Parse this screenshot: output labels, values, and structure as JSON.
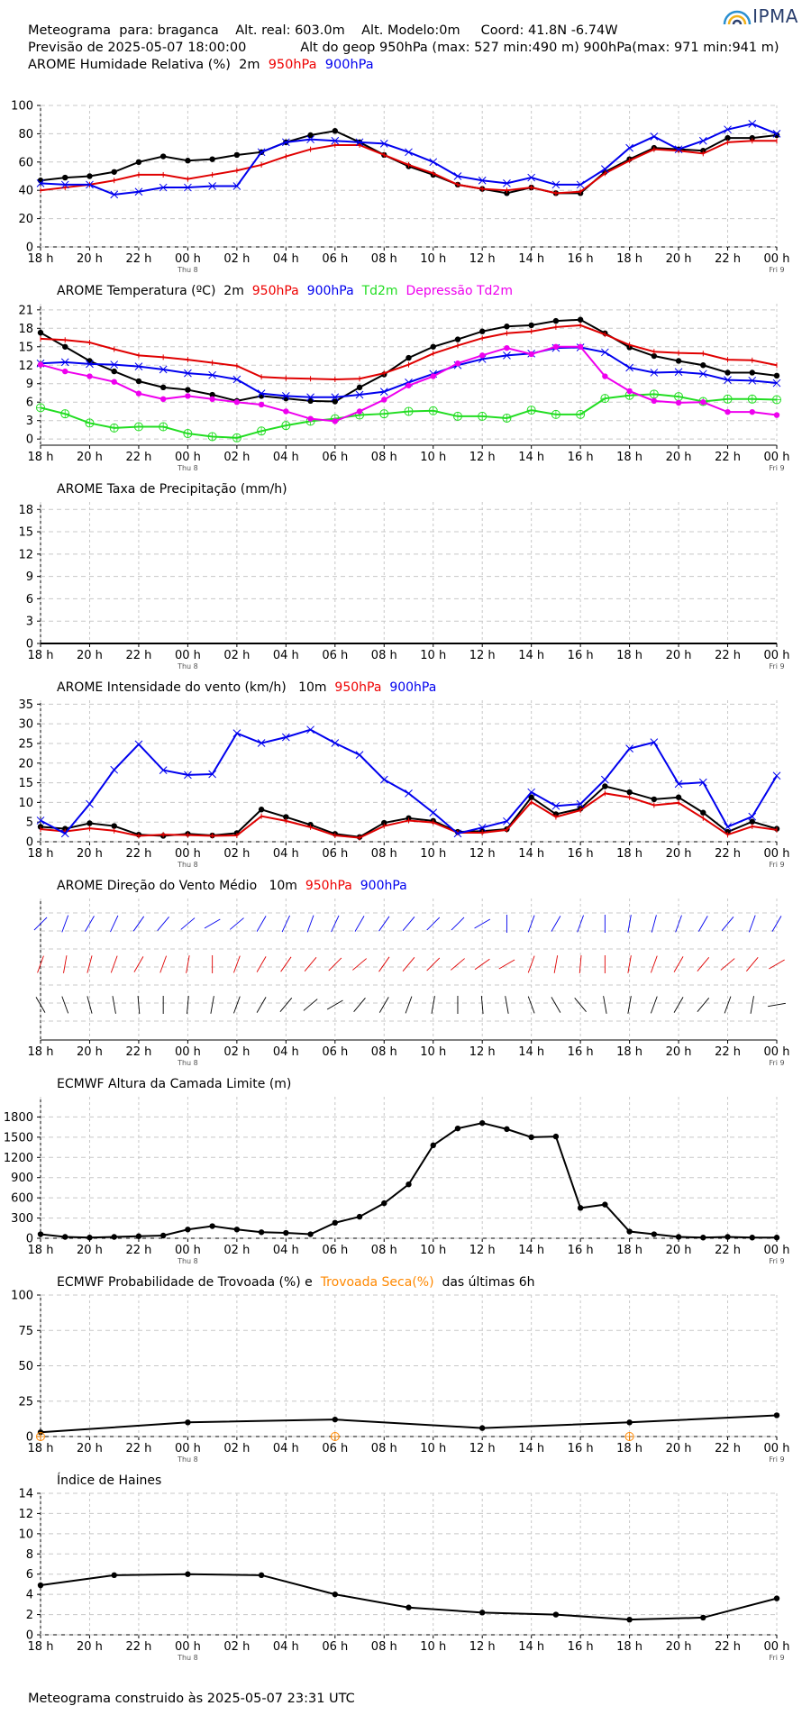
{
  "header": {
    "line1": "Meteograma  para: braganca    Alt. real: 603.0m    Alt. Modelo:0m     Coord: 41.8N -6.74W",
    "line2": "Previsão de 2025-05-07 18:00:00             Alt do geop 950hPa (max: 527 min:490 m) 900hPa(max: 971 min:941 m)",
    "line3_prefix": "AROME Humidade Relativa (%)  2m  ",
    "line3_950": "950hPa",
    "line3_900": "900hPa",
    "logo": "IPMA"
  },
  "titles": {
    "temp_prefix": "AROME Temperatura (ºC)  2m  ",
    "temp_950": "950hPa",
    "temp_900": "900hPa",
    "temp_td": "Td2m",
    "temp_dep": "Depressão Td2m",
    "precip": "AROME Taxa de Precipitação (mm/h)",
    "wind_prefix": "AROME Intensidade do vento (km/h)   10m  ",
    "wind_950": "950hPa",
    "wind_900": "900hPa",
    "dir_prefix": "AROME Direção do Vento Médio   10m  ",
    "dir_950": "950hPa",
    "dir_900": "900hPa",
    "pbl": "ECMWF Altura da Camada Limite (m)",
    "storm_prefix": "ECMWF Probabilidade de Trovoada (%) e  ",
    "storm_dry": "Trovoada Seca(%)",
    "storm_suffix": "  das últimas 6h",
    "haines": "Índice de Haines"
  },
  "footer": "Meteograma construido às 2025-05-07 23:31 UTC",
  "colors": {
    "c2m": "#000000",
    "c950": "#e00000",
    "c900": "#0000ee",
    "ctd": "#22dd22",
    "cdep": "#ee00ee",
    "cdry": "#ff8800",
    "grid": "#c8c8c8"
  },
  "chart_data": [
    {
      "id": "rh",
      "type": "line",
      "x_tick_labels": [
        "18 h",
        "20 h",
        "22 h",
        "00 h",
        "02 h",
        "04 h",
        "06 h",
        "08 h",
        "10 h",
        "12 h",
        "14 h",
        "16 h",
        "18 h",
        "20 h",
        "22 h",
        "00 h"
      ],
      "x_sub_labels": {
        "3": "Thu 8",
        "15": "Fri 9"
      },
      "ylim": [
        0,
        100
      ],
      "yticks": [
        "0",
        "20",
        "40",
        "60",
        "80",
        "100"
      ],
      "series": [
        {
          "name": "2m",
          "color": "c2m",
          "marker": "dot",
          "values": [
            47,
            49,
            50,
            53,
            60,
            64,
            61,
            62,
            65,
            67,
            74,
            79,
            82,
            74,
            65,
            57,
            51,
            44,
            41,
            38,
            42,
            38,
            38,
            53,
            62,
            70,
            69,
            68,
            77,
            77,
            79
          ]
        },
        {
          "name": "950hPa",
          "color": "c950",
          "marker": "tick",
          "values": [
            40,
            42,
            44,
            47,
            51,
            51,
            48,
            51,
            54,
            58,
            64,
            69,
            72,
            72,
            65,
            58,
            52,
            44,
            41,
            40,
            42,
            38,
            39,
            52,
            61,
            69,
            68,
            66,
            74,
            75,
            75
          ]
        },
        {
          "name": "900hPa",
          "color": "c900",
          "marker": "x",
          "values": [
            45,
            44,
            44,
            37,
            39,
            42,
            42,
            43,
            43,
            67,
            74,
            76,
            75,
            74,
            73,
            67,
            60,
            50,
            47,
            45,
            49,
            44,
            44,
            55,
            70,
            78,
            69,
            75,
            83,
            87,
            80
          ]
        }
      ]
    },
    {
      "id": "temp",
      "type": "line",
      "x_tick_labels": [
        "18 h",
        "20 h",
        "22 h",
        "00 h",
        "02 h",
        "04 h",
        "06 h",
        "08 h",
        "10 h",
        "12 h",
        "14 h",
        "16 h",
        "18 h",
        "20 h",
        "22 h",
        "00 h"
      ],
      "x_sub_labels": {
        "3": "Thu 8",
        "15": "Fri 9"
      },
      "ylim": [
        -1,
        22
      ],
      "yticks": [
        "0",
        "3",
        "6",
        "9",
        "12",
        "15",
        "18",
        "21"
      ],
      "series": [
        {
          "name": "2m",
          "color": "c2m",
          "marker": "dot",
          "values": [
            17.3,
            15,
            12.7,
            11,
            9.4,
            8.4,
            8,
            7.2,
            6.2,
            7,
            6.6,
            6.2,
            6.1,
            8.4,
            10.5,
            13.2,
            15,
            16.2,
            17.5,
            18.3,
            18.5,
            19.2,
            19.4,
            17.2,
            14.9,
            13.5,
            12.7,
            12,
            10.8,
            10.8,
            10.3
          ]
        },
        {
          "name": "950hPa",
          "color": "c950",
          "marker": "tick",
          "values": [
            16.3,
            16.1,
            15.7,
            14.6,
            13.6,
            13.3,
            12.9,
            12.4,
            11.9,
            10.1,
            9.9,
            9.8,
            9.7,
            9.8,
            10.7,
            12.1,
            13.9,
            15.2,
            16.4,
            17.2,
            17.5,
            18.2,
            18.5,
            17,
            15.3,
            14.2,
            14,
            13.9,
            12.9,
            12.8,
            12
          ]
        },
        {
          "name": "900hPa",
          "color": "c900",
          "marker": "x",
          "values": [
            12.3,
            12.5,
            12.2,
            12.1,
            11.8,
            11.3,
            10.7,
            10.4,
            9.7,
            7.4,
            7,
            6.8,
            6.8,
            7.2,
            7.7,
            9.2,
            10.6,
            12,
            13,
            13.6,
            13.9,
            14.8,
            14.9,
            14.1,
            11.6,
            10.8,
            10.9,
            10.6,
            9.6,
            9.5,
            9.1
          ]
        },
        {
          "name": "Td2m",
          "color": "ctd",
          "marker": "circle",
          "values": [
            5.1,
            4.1,
            2.6,
            1.8,
            2,
            2,
            0.9,
            0.4,
            0.2,
            1.3,
            2.2,
            2.9,
            3.3,
            3.9,
            4.1,
            4.5,
            4.6,
            3.7,
            3.7,
            3.4,
            4.7,
            4,
            4,
            6.6,
            7.1,
            7.3,
            6.9,
            6.1,
            6.5,
            6.5,
            6.4
          ]
        },
        {
          "name": "Depressão Td2m",
          "color": "cdep",
          "marker": "dot",
          "values": [
            12.1,
            11,
            10.2,
            9.3,
            7.4,
            6.5,
            7,
            6.5,
            6,
            5.6,
            4.5,
            3.3,
            2.9,
            4.5,
            6.4,
            8.7,
            10.2,
            12.3,
            13.6,
            14.8,
            13.8,
            15,
            15,
            10.2,
            7.8,
            6.2,
            5.9,
            6,
            4.4,
            4.4,
            3.9
          ]
        }
      ]
    },
    {
      "id": "precip",
      "type": "line",
      "x_tick_labels": [
        "18 h",
        "20 h",
        "22 h",
        "00 h",
        "02 h",
        "04 h",
        "06 h",
        "08 h",
        "10 h",
        "12 h",
        "14 h",
        "16 h",
        "18 h",
        "20 h",
        "22 h",
        "00 h"
      ],
      "x_sub_labels": {
        "3": "Thu 8",
        "15": "Fri 9"
      },
      "ylim": [
        0,
        19
      ],
      "yticks": [
        "0",
        "3",
        "6",
        "9",
        "12",
        "15",
        "18"
      ],
      "series": [
        {
          "name": "precip",
          "color": "c2m",
          "marker": "none",
          "values": [
            0,
            0,
            0,
            0,
            0,
            0,
            0,
            0,
            0,
            0,
            0,
            0,
            0,
            0,
            0,
            0,
            0,
            0,
            0,
            0,
            0,
            0,
            0,
            0,
            0,
            0,
            0,
            0,
            0,
            0,
            0
          ]
        }
      ]
    },
    {
      "id": "wind",
      "type": "line",
      "x_tick_labels": [
        "18 h",
        "20 h",
        "22 h",
        "00 h",
        "02 h",
        "04 h",
        "06 h",
        "08 h",
        "10 h",
        "12 h",
        "14 h",
        "16 h",
        "18 h",
        "20 h",
        "22 h",
        "00 h"
      ],
      "x_sub_labels": {
        "3": "Thu 8",
        "15": "Fri 9"
      },
      "ylim": [
        0,
        36
      ],
      "yticks": [
        "0",
        "5",
        "10",
        "15",
        "20",
        "25",
        "30",
        "35"
      ],
      "series": [
        {
          "name": "2m",
          "color": "c2m",
          "marker": "dot",
          "values": [
            3.8,
            3.3,
            4.7,
            4,
            1.8,
            1.5,
            2,
            1.6,
            2.2,
            8.2,
            6.3,
            4.3,
            2,
            1.2,
            4.8,
            6,
            5.3,
            2.5,
            2.7,
            3.2,
            11.3,
            7,
            8.4,
            14.1,
            12.6,
            10.8,
            11.3,
            7.4,
            2.5,
            5.1,
            3.3
          ]
        },
        {
          "name": "950hPa",
          "color": "c950",
          "marker": "tick",
          "values": [
            3.2,
            2.6,
            3.4,
            2.8,
            1.5,
            1.8,
            1.7,
            1.5,
            1.6,
            6.5,
            5.3,
            3.7,
            1.6,
            1,
            4,
            5.4,
            4.9,
            2.3,
            2.3,
            3,
            10.1,
            6.3,
            8,
            12.3,
            11.3,
            9.3,
            9.9,
            6,
            1.8,
            3.9,
            3
          ]
        },
        {
          "name": "900hPa",
          "color": "c900",
          "marker": "x",
          "values": [
            5.4,
            2.1,
            9.6,
            18.3,
            24.8,
            18.2,
            17,
            17.2,
            27.6,
            25.1,
            26.6,
            28.5,
            25.1,
            22.1,
            15.8,
            12.3,
            7.4,
            2.1,
            3.6,
            5.2,
            12.6,
            9.1,
            9.6,
            15.8,
            23.7,
            25.3,
            14.7,
            15.1,
            3.8,
            6.4,
            16.8
          ]
        }
      ]
    },
    {
      "id": "pbl",
      "type": "line",
      "x_tick_labels": [
        "18 h",
        "20 h",
        "22 h",
        "00 h",
        "02 h",
        "04 h",
        "06 h",
        "08 h",
        "10 h",
        "12 h",
        "14 h",
        "16 h",
        "18 h",
        "20 h",
        "22 h",
        "00 h"
      ],
      "x_sub_labels": {
        "3": "Thu 8",
        "15": "Fri 9"
      },
      "ylim": [
        0,
        2100
      ],
      "yticks": [
        "0",
        "300",
        "600",
        "900",
        "1200",
        "1500",
        "1800"
      ],
      "series": [
        {
          "name": "pbl",
          "color": "c2m",
          "marker": "dot",
          "values": [
            60,
            20,
            10,
            20,
            30,
            40,
            130,
            180,
            130,
            90,
            80,
            60,
            230,
            320,
            520,
            800,
            1380,
            1630,
            1710,
            1620,
            1500,
            1510,
            450,
            500,
            100,
            60,
            20,
            10,
            20,
            10,
            10
          ]
        }
      ]
    },
    {
      "id": "storm",
      "type": "line",
      "x_tick_labels": [
        "18 h",
        "20 h",
        "22 h",
        "00 h",
        "02 h",
        "04 h",
        "06 h",
        "08 h",
        "10 h",
        "12 h",
        "14 h",
        "16 h",
        "18 h",
        "20 h",
        "22 h",
        "00 h"
      ],
      "x_sub_labels": {
        "3": "Thu 8",
        "15": "Fri 9"
      },
      "ylim": [
        0,
        100
      ],
      "yticks": [
        "0",
        "25",
        "50",
        "75",
        "100"
      ],
      "series": [
        {
          "name": "Trovoada",
          "color": "c2m",
          "marker": "dot",
          "x": [
            0,
            6,
            12,
            18,
            24,
            30
          ],
          "values": [
            3,
            10,
            12,
            6,
            10,
            15
          ]
        },
        {
          "name": "Trovoada Seca(%)",
          "color": "cdry",
          "marker": "circle",
          "x": [
            0,
            12,
            24
          ],
          "values": [
            0,
            0,
            0
          ]
        }
      ]
    },
    {
      "id": "haines",
      "type": "line",
      "x_tick_labels": [
        "18 h",
        "20 h",
        "22 h",
        "00 h",
        "02 h",
        "04 h",
        "06 h",
        "08 h",
        "10 h",
        "12 h",
        "14 h",
        "16 h",
        "18 h",
        "20 h",
        "22 h",
        "00 h"
      ],
      "x_sub_labels": {
        "3": "Thu 8",
        "15": "Fri 9"
      },
      "ylim": [
        0,
        14
      ],
      "yticks": [
        "0",
        "2",
        "4",
        "6",
        "8",
        "10",
        "12",
        "14"
      ],
      "series": [
        {
          "name": "haines",
          "color": "c2m",
          "marker": "dot",
          "x": [
            0,
            3,
            6,
            9,
            12,
            15,
            18,
            21,
            24,
            27,
            30
          ],
          "values": [
            4.9,
            5.9,
            6,
            5.9,
            4,
            2.7,
            2.2,
            2,
            1.5,
            1.7,
            3.6
          ]
        }
      ]
    }
  ],
  "wind_dir": {
    "angles_900": [
      225,
      200,
      210,
      205,
      215,
      220,
      230,
      240,
      230,
      210,
      205,
      200,
      205,
      210,
      215,
      220,
      225,
      45,
      60,
      180,
      200,
      210,
      200,
      180,
      190,
      195,
      200,
      210,
      220,
      200,
      210
    ],
    "angles_950": [
      200,
      190,
      195,
      200,
      210,
      200,
      190,
      180,
      200,
      210,
      215,
      220,
      225,
      230,
      215,
      220,
      225,
      230,
      235,
      240,
      200,
      190,
      185,
      180,
      190,
      200,
      210,
      220,
      230,
      220,
      240
    ],
    "angles_2m": [
      150,
      160,
      165,
      170,
      175,
      180,
      185,
      190,
      200,
      210,
      220,
      230,
      240,
      220,
      210,
      200,
      190,
      180,
      175,
      170,
      160,
      150,
      140,
      170,
      190,
      200,
      210,
      220,
      200,
      190,
      260
    ]
  }
}
